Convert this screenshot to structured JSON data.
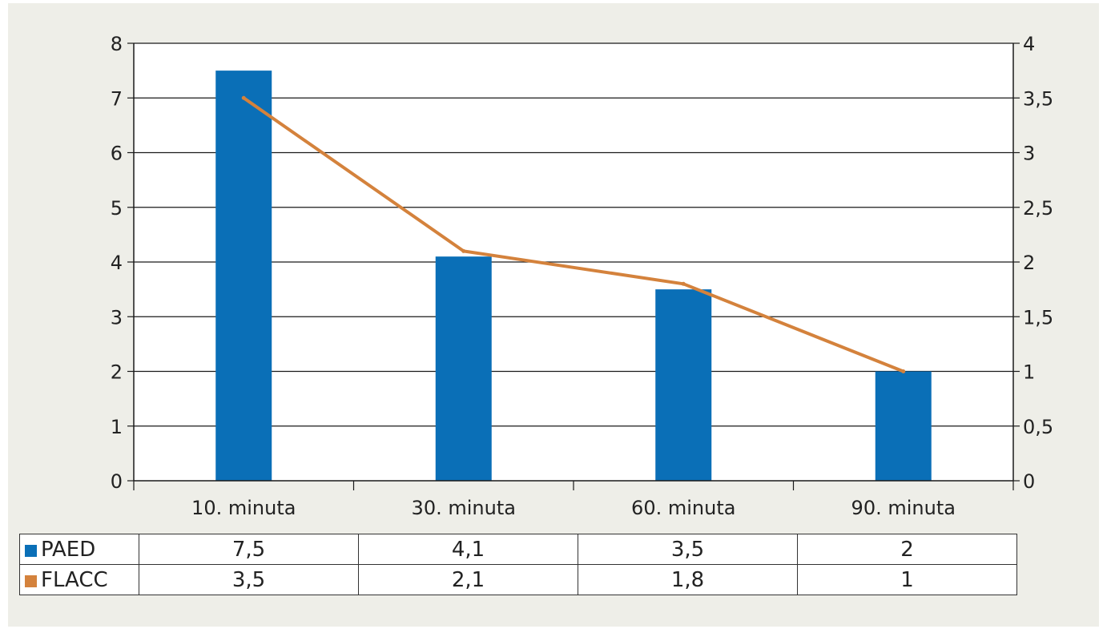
{
  "chart_data": {
    "type": "bar",
    "categories": [
      "10. minuta",
      "30. minuta",
      "60. minuta",
      "90. minuta"
    ],
    "series": [
      {
        "name": "PAED",
        "type": "bar",
        "axis": "left",
        "color": "#0a6fb7",
        "values": [
          7.5,
          4.1,
          3.5,
          2
        ]
      },
      {
        "name": "FLACC",
        "type": "line",
        "axis": "right",
        "color": "#d4823c",
        "values": [
          3.5,
          2.1,
          1.8,
          1
        ]
      }
    ],
    "y_left": {
      "min": 0,
      "max": 8,
      "ticks": [
        "0",
        "1",
        "2",
        "3",
        "4",
        "5",
        "6",
        "7",
        "8"
      ]
    },
    "y_right": {
      "min": 0,
      "max": 4,
      "ticks": [
        "0",
        "0,5",
        "1",
        "1,5",
        "2",
        "2,5",
        "3",
        "3,5",
        "4"
      ]
    },
    "grid": true,
    "legend": "data-table-below",
    "table": {
      "rows": [
        {
          "label": "PAED",
          "color": "#0a6fb7",
          "cells": [
            "7,5",
            "4,1",
            "3,5",
            "2"
          ]
        },
        {
          "label": "FLACC",
          "color": "#d4823c",
          "cells": [
            "3,5",
            "2,1",
            "1,8",
            "1"
          ]
        }
      ]
    }
  }
}
